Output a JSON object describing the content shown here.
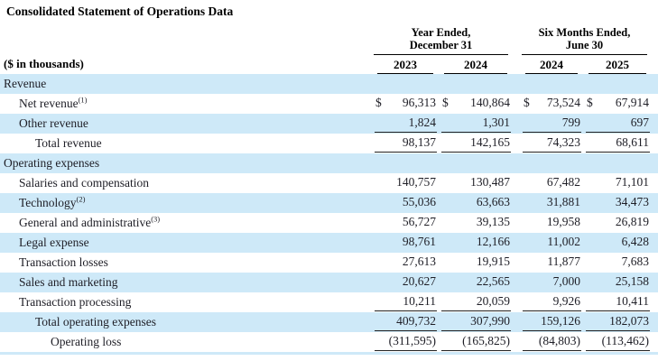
{
  "title": "Consolidated Statement of Operations Data",
  "table": {
    "units_label": "($ in thousands)",
    "column_groups": [
      {
        "line1": "Year Ended,",
        "line2": "December 31"
      },
      {
        "line1": "Six Months Ended,",
        "line2": "June 30"
      }
    ],
    "year_columns": [
      "2023",
      "2024",
      "2024",
      "2025"
    ],
    "highlight_color": "#cee9f8",
    "rows": [
      {
        "label": "Revenue",
        "indent": 0,
        "section": true,
        "shaded": true,
        "values": null
      },
      {
        "label": "Net revenue",
        "footnote": "(1)",
        "indent": 1,
        "shaded": false,
        "dollar": true,
        "values": [
          "96,313",
          "140,864",
          "73,524",
          "67,914"
        ]
      },
      {
        "label": "Other revenue",
        "indent": 1,
        "shaded": true,
        "underline": true,
        "values": [
          "1,824",
          "1,301",
          "799",
          "697"
        ]
      },
      {
        "label": "Total revenue",
        "indent": 2,
        "shaded": false,
        "underline": true,
        "values": [
          "98,137",
          "142,165",
          "74,323",
          "68,611"
        ]
      },
      {
        "label": "Operating expenses",
        "indent": 0,
        "section": true,
        "shaded": true,
        "values": null
      },
      {
        "label": "Salaries and compensation",
        "indent": 1,
        "shaded": false,
        "values": [
          "140,757",
          "130,487",
          "67,482",
          "71,101"
        ]
      },
      {
        "label": "Technology",
        "footnote": "(2)",
        "indent": 1,
        "shaded": true,
        "values": [
          "55,036",
          "63,663",
          "31,881",
          "34,473"
        ]
      },
      {
        "label": "General and administrative",
        "footnote": "(3)",
        "indent": 1,
        "shaded": false,
        "values": [
          "56,727",
          "39,135",
          "19,958",
          "26,819"
        ]
      },
      {
        "label": "Legal expense",
        "indent": 1,
        "shaded": true,
        "values": [
          "98,761",
          "12,166",
          "11,002",
          "6,428"
        ]
      },
      {
        "label": "Transaction losses",
        "indent": 1,
        "shaded": false,
        "values": [
          "27,613",
          "19,915",
          "11,877",
          "7,683"
        ]
      },
      {
        "label": "Sales and marketing",
        "indent": 1,
        "shaded": true,
        "values": [
          "20,627",
          "22,565",
          "7,000",
          "25,158"
        ]
      },
      {
        "label": "Transaction processing",
        "indent": 1,
        "shaded": false,
        "underline": true,
        "values": [
          "10,211",
          "20,059",
          "9,926",
          "10,411"
        ]
      },
      {
        "label": "Total operating expenses",
        "indent": 2,
        "shaded": true,
        "underline": true,
        "values": [
          "409,732",
          "307,990",
          "159,126",
          "182,073"
        ]
      },
      {
        "label": "Operating loss",
        "indent": 3,
        "shaded": false,
        "underline": true,
        "values": [
          "(311,595)",
          "(165,825)",
          "(84,803)",
          "(113,462)"
        ]
      }
    ]
  }
}
